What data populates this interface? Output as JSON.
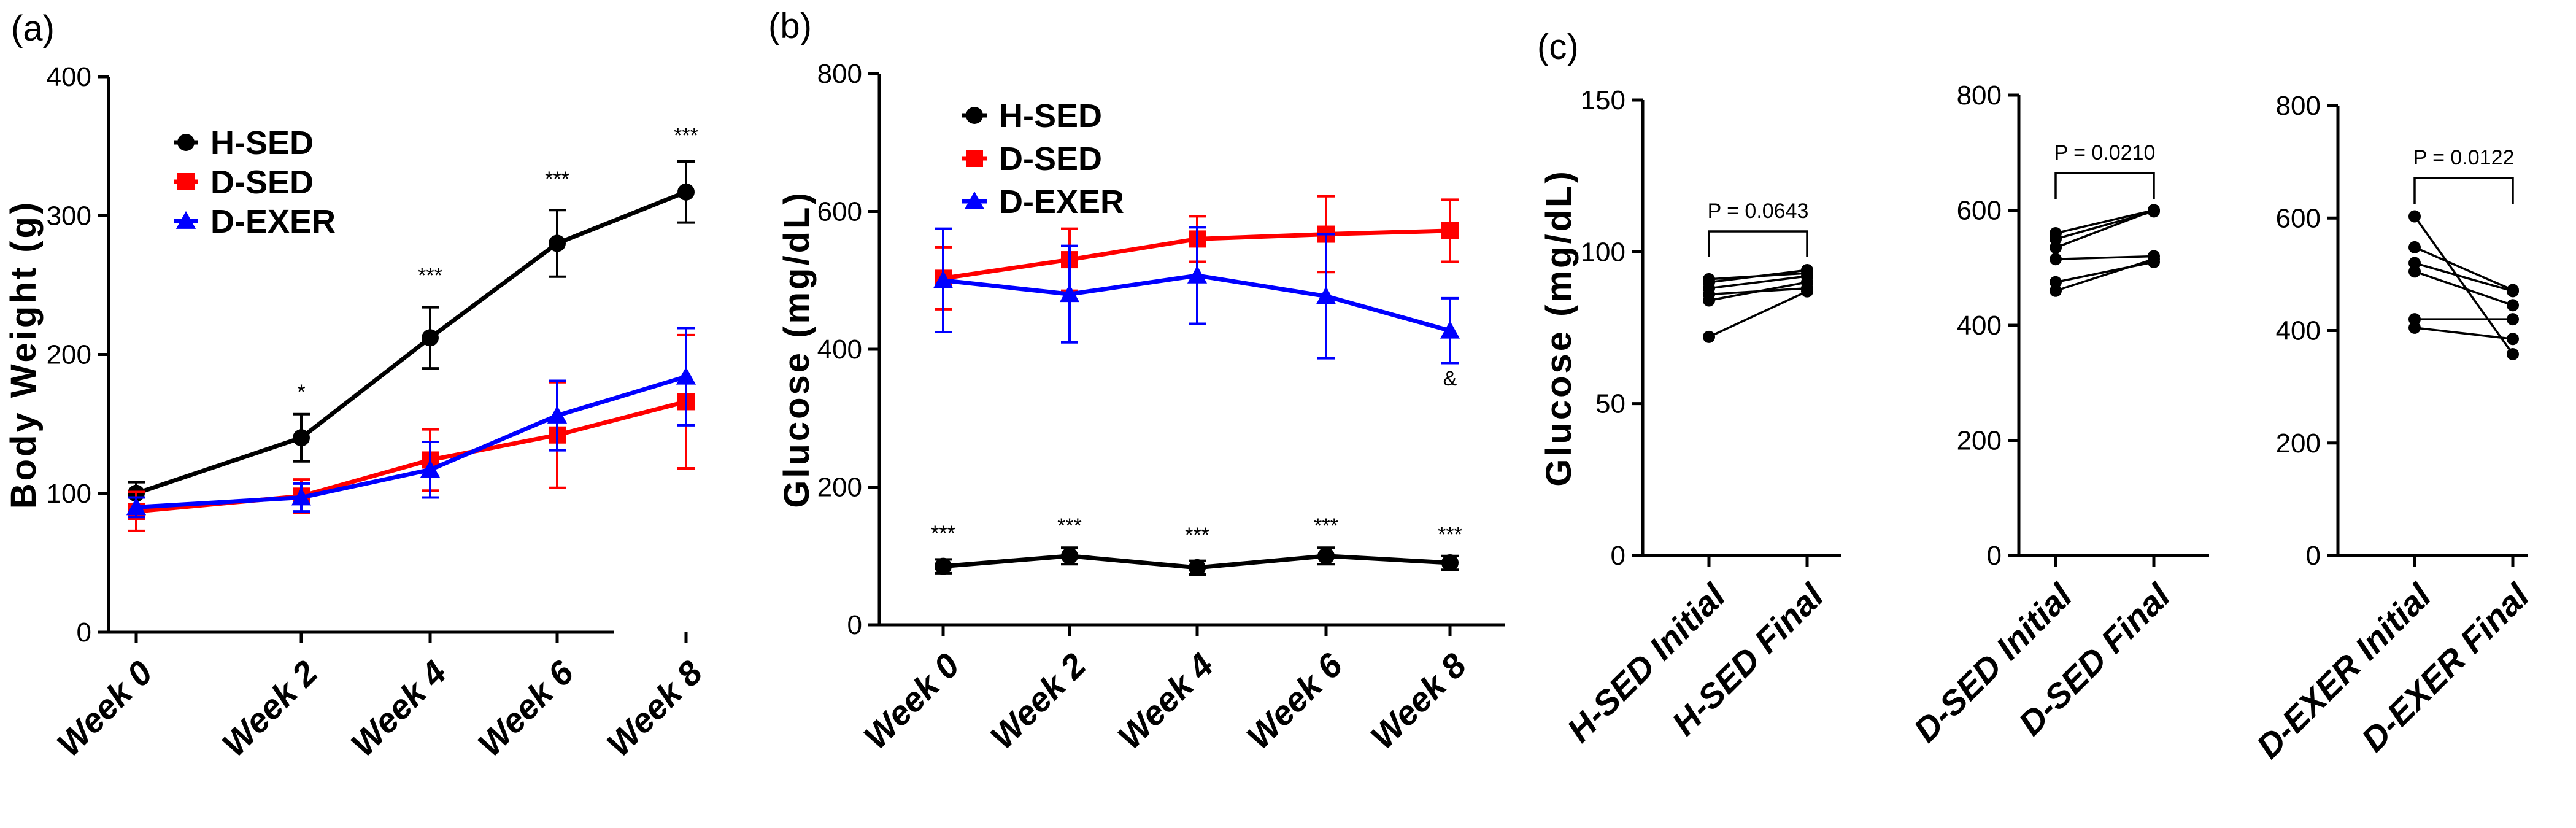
{
  "panels": [
    {
      "tag": "(a)"
    },
    {
      "tag": "(b)"
    },
    {
      "tag": "(c)"
    }
  ],
  "colors": {
    "H-SED": "#000000",
    "D-SED": "#ff0000",
    "D-EXER": "#0000ff"
  },
  "chart_data": [
    {
      "id": "a",
      "type": "line",
      "title": "",
      "ylabel": "Body Weight (g)",
      "xlabel": "",
      "ylim": [
        0,
        400
      ],
      "yticks": [
        0,
        100,
        200,
        300,
        400
      ],
      "categories": [
        "Week 0",
        "Week 2",
        "Week 4",
        "Week 6",
        "Week 8"
      ],
      "legend": [
        "H-SED",
        "D-SED",
        "D-EXER"
      ],
      "series": [
        {
          "name": "H-SED",
          "marker": "circle",
          "values": [
            100,
            140,
            212,
            280,
            317
          ],
          "err": [
            8,
            17,
            22,
            24,
            22
          ]
        },
        {
          "name": "D-SED",
          "marker": "square",
          "values": [
            87,
            98,
            124,
            142,
            166
          ],
          "err": [
            14,
            12,
            22,
            38,
            48
          ]
        },
        {
          "name": "D-EXER",
          "marker": "triangle",
          "values": [
            90,
            97,
            117,
            156,
            184
          ],
          "err": [
            7,
            10,
            20,
            25,
            35
          ]
        }
      ],
      "annotations": [
        {
          "text": "",
          "x": "Week 0"
        },
        {
          "text": "*",
          "x": "Week 2"
        },
        {
          "text": "***",
          "x": "Week 4"
        },
        {
          "text": "***",
          "x": "Week 6"
        },
        {
          "text": "***",
          "x": "Week 8"
        }
      ]
    },
    {
      "id": "b",
      "type": "line",
      "title": "",
      "ylabel": "Glucose (mg/dL)",
      "xlabel": "",
      "ylim": [
        0,
        800
      ],
      "yticks": [
        0,
        200,
        400,
        600,
        800
      ],
      "categories": [
        "Week 0",
        "Week 2",
        "Week 4",
        "Week 6",
        "Week 8"
      ],
      "legend": [
        "H-SED",
        "D-SED",
        "D-EXER"
      ],
      "series": [
        {
          "name": "H-SED",
          "marker": "circle",
          "values": [
            85,
            100,
            83,
            100,
            90
          ],
          "err": [
            10,
            12,
            10,
            12,
            10
          ]
        },
        {
          "name": "D-SED",
          "marker": "square",
          "values": [
            503,
            530,
            560,
            567,
            572
          ],
          "err": [
            45,
            45,
            33,
            55,
            45
          ]
        },
        {
          "name": "D-EXER",
          "marker": "triangle",
          "values": [
            500,
            480,
            507,
            477,
            427
          ],
          "err": [
            75,
            70,
            70,
            90,
            47
          ]
        }
      ],
      "annotations": [
        {
          "text": "***",
          "x": "Week 0"
        },
        {
          "text": "***",
          "x": "Week 2"
        },
        {
          "text": "***",
          "x": "Week 4"
        },
        {
          "text": "***",
          "x": "Week 6"
        },
        {
          "text": "***",
          "x": "Week 8"
        },
        {
          "text": "&",
          "x": "Week 8"
        }
      ]
    },
    {
      "id": "c1",
      "type": "scatter",
      "title": "",
      "ylabel": "Glucose (mg/dL)",
      "ylim": [
        0,
        150
      ],
      "yticks": [
        0,
        50,
        100,
        150
      ],
      "categories": [
        "H-SED Initial",
        "H-SED Final"
      ],
      "pairs": [
        [
          72,
          87
        ],
        [
          84,
          90
        ],
        [
          86,
          88
        ],
        [
          88,
          92
        ],
        [
          90,
          94
        ],
        [
          91,
          93
        ]
      ],
      "pvalue": "P = 0.0643"
    },
    {
      "id": "c2",
      "type": "scatter",
      "title": "",
      "ylabel": "",
      "ylim": [
        0,
        800
      ],
      "yticks": [
        0,
        200,
        400,
        600,
        800
      ],
      "categories": [
        "D-SED Initial",
        "D-SED Final"
      ],
      "pairs": [
        [
          460,
          515
        ],
        [
          475,
          510
        ],
        [
          515,
          520
        ],
        [
          535,
          600
        ],
        [
          550,
          598
        ],
        [
          560,
          600
        ]
      ],
      "pvalue": "P = 0.0210"
    },
    {
      "id": "c3",
      "type": "scatter",
      "title": "",
      "ylabel": "",
      "ylim": [
        0,
        800
      ],
      "yticks": [
        0,
        200,
        400,
        600,
        800
      ],
      "categories": [
        "D-EXER Initial",
        "D-EXER Final"
      ],
      "pairs": [
        [
          405,
          385
        ],
        [
          420,
          420
        ],
        [
          505,
          445
        ],
        [
          520,
          470
        ],
        [
          548,
          472
        ],
        [
          603,
          358
        ]
      ],
      "pvalue": "P = 0.0122"
    }
  ]
}
